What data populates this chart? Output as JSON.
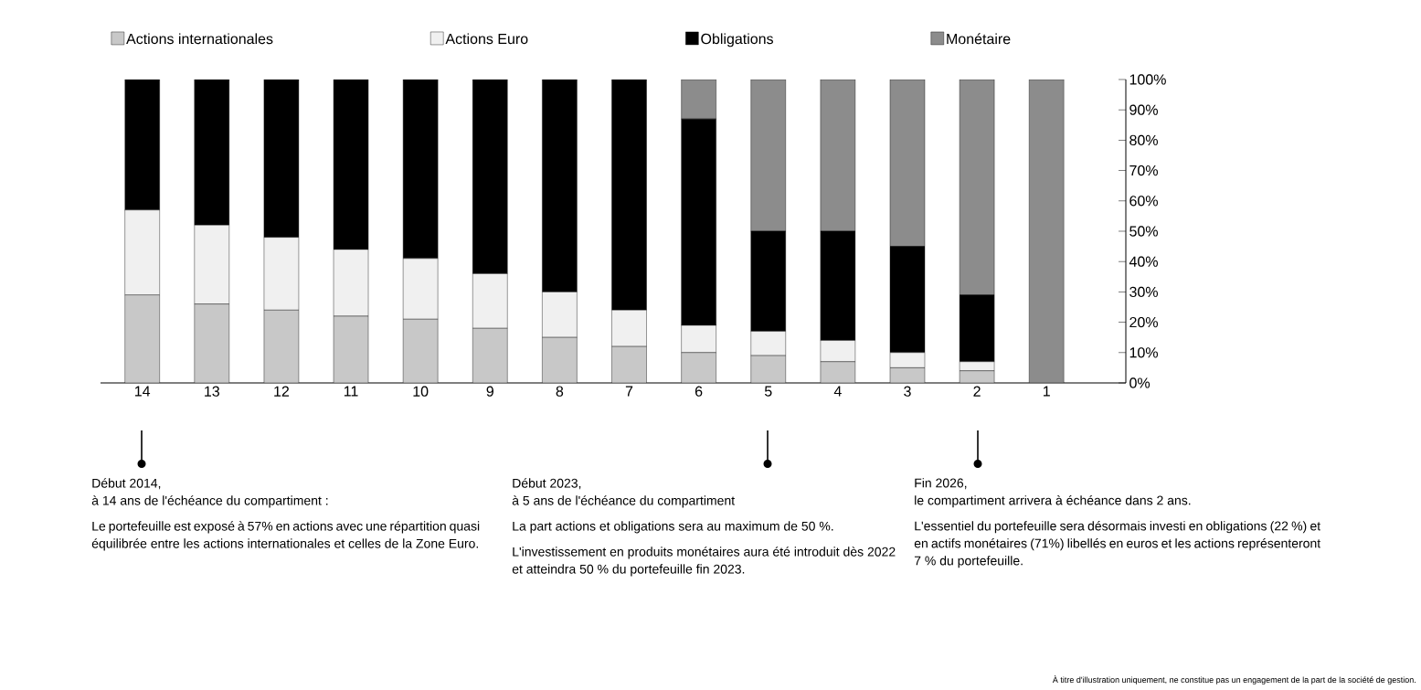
{
  "chart_data": {
    "type": "bar",
    "stacked": true,
    "legend": "top",
    "grid": false,
    "categories": [
      "14",
      "13",
      "12",
      "11",
      "10",
      "9",
      "8",
      "7",
      "6",
      "5",
      "4",
      "3",
      "2",
      "1"
    ],
    "series": [
      {
        "name": "Actions internationales",
        "color": "#c8c8c8",
        "values": [
          29,
          26,
          24,
          22,
          21,
          18,
          15,
          12,
          10,
          9,
          7,
          5,
          4,
          0
        ]
      },
      {
        "name": "Actions Euro",
        "color": "#f0f0f0",
        "values": [
          28,
          26,
          24,
          22,
          20,
          18,
          15,
          12,
          9,
          8,
          7,
          5,
          3,
          0
        ]
      },
      {
        "name": "Obligations",
        "color": "#000000",
        "values": [
          43,
          48,
          52,
          56,
          59,
          64,
          70,
          76,
          68,
          33,
          36,
          35,
          22,
          0
        ]
      },
      {
        "name": "Monétaire",
        "color": "#8c8c8c",
        "values": [
          0,
          0,
          0,
          0,
          0,
          0,
          0,
          0,
          13,
          50,
          50,
          55,
          71,
          100
        ]
      }
    ],
    "ylim": [
      0,
      100
    ],
    "yticks": [
      {
        "value": 0,
        "label": "0%"
      },
      {
        "value": 10,
        "label": "10%"
      },
      {
        "value": 20,
        "label": "20%"
      },
      {
        "value": 30,
        "label": "30%"
      },
      {
        "value": 40,
        "label": "40%"
      },
      {
        "value": 50,
        "label": "50%"
      },
      {
        "value": 60,
        "label": "60%"
      },
      {
        "value": 70,
        "label": "70%"
      },
      {
        "value": 80,
        "label": "80%"
      },
      {
        "value": 90,
        "label": "90%"
      },
      {
        "value": 100,
        "label": "100%"
      }
    ],
    "annotations": [
      "À titre d'illustration uniquement, ne constitue pas un engagement de la part de la société de gestion.",
      "Début 2014,",
      "à 14 ans de l'échéance du compartiment :",
      "Le portefeuille est exposé à 57% en actions avec une répartition quasi équilibrée entre les actions internationales et celles de la Zone Euro.",
      "Début 2023,",
      "à 5 ans de l'échéance du compartiment",
      "La part actions et obligations sera au maximum de 50 %.",
      "L'investissement en produits monétaires aura été introduit dès 2022 et atteindra 50 % du portefeuille fin 2023.",
      "Fin 2026,",
      "le compartiment arrivera à échéance dans 2 ans.",
      "L'essentiel du portefeuille sera désormais investi en obligations (22 %) et en actifs monétaires (71%) libellés en euros et les actions représenteront 7 % du portefeuille."
    ]
  }
}
